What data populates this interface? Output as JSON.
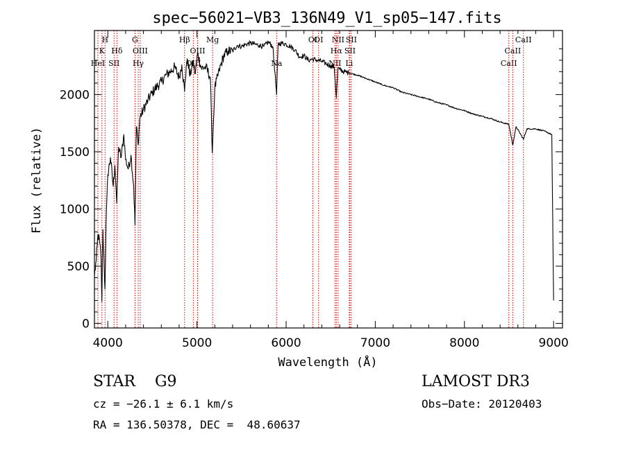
{
  "chart_data": {
    "type": "line",
    "title": "spec−56021−VB3_136N49_V1_sp05−147.fits",
    "xlabel": "Wavelength (Å)",
    "ylabel": "Flux (relative)",
    "xlim": [
      3850,
      9100
    ],
    "ylim": [
      -40,
      2560
    ],
    "xticks": [
      4000,
      5000,
      6000,
      7000,
      8000,
      9000
    ],
    "xtick_labels": [
      "4000",
      "5000",
      "6000",
      "7000",
      "8000",
      "9000"
    ],
    "yticks": [
      0,
      500,
      1000,
      1500,
      2000
    ],
    "ytick_labels": [
      "0",
      "500",
      "1000",
      "1500",
      "2000"
    ],
    "series": [
      {
        "name": "flux",
        "color": "#000000",
        "x": [
          3850,
          3870,
          3890,
          3910,
          3925,
          3933,
          3945,
          3960,
          3968,
          3980,
          4000,
          4030,
          4060,
          4080,
          4101,
          4120,
          4150,
          4180,
          4200,
          4230,
          4260,
          4290,
          4305,
          4320,
          4340,
          4360,
          4400,
          4450,
          4500,
          4550,
          4600,
          4650,
          4700,
          4750,
          4800,
          4830,
          4861,
          4880,
          4900,
          4920,
          4957,
          4980,
          5007,
          5050,
          5100,
          5150,
          5172,
          5183,
          5200,
          5250,
          5300,
          5350,
          5400,
          5450,
          5500,
          5550,
          5600,
          5650,
          5700,
          5750,
          5800,
          5850,
          5875,
          5893,
          5910,
          5950,
          6000,
          6050,
          6100,
          6150,
          6200,
          6250,
          6300,
          6350,
          6400,
          6450,
          6500,
          6540,
          6563,
          6580,
          6600,
          6650,
          6700,
          6750,
          6800,
          6900,
          7000,
          7100,
          7200,
          7300,
          7400,
          7500,
          7600,
          7700,
          7800,
          7900,
          8000,
          8100,
          8200,
          8300,
          8400,
          8498,
          8542,
          8580,
          8662,
          8700,
          8800,
          8900,
          8980,
          9000
        ],
        "y": [
          420,
          550,
          780,
          700,
          560,
          190,
          820,
          480,
          300,
          860,
          1300,
          1450,
          1200,
          1380,
          1050,
          1540,
          1450,
          1650,
          1430,
          1350,
          1470,
          1200,
          860,
          1720,
          1560,
          1800,
          1870,
          1950,
          2020,
          2070,
          2110,
          2170,
          2200,
          2240,
          2150,
          2260,
          2030,
          2250,
          2300,
          2160,
          2290,
          2180,
          2360,
          2230,
          2240,
          2150,
          1490,
          1730,
          2060,
          2210,
          2340,
          2380,
          2380,
          2430,
          2420,
          2440,
          2450,
          2440,
          2430,
          2420,
          2460,
          2420,
          2190,
          2000,
          2440,
          2450,
          2440,
          2420,
          2390,
          2330,
          2340,
          2300,
          2310,
          2300,
          2290,
          2270,
          2250,
          2240,
          1970,
          2230,
          2220,
          2200,
          2190,
          2180,
          2170,
          2140,
          2110,
          2080,
          2060,
          2020,
          2000,
          1980,
          1960,
          1930,
          1910,
          1880,
          1860,
          1830,
          1810,
          1790,
          1760,
          1740,
          1560,
          1720,
          1610,
          1700,
          1700,
          1680,
          1650,
          200
        ]
      }
    ],
    "line_markers": [
      {
        "name": "HeI",
        "x": 3889,
        "level": 3
      },
      {
        "name": "K",
        "x": 3934,
        "level": 2
      },
      {
        "name": "H",
        "x": 3969,
        "level": 1
      },
      {
        "name": "SII",
        "x": 4070,
        "level": 3
      },
      {
        "name": "Hδ",
        "x": 4102,
        "level": 2
      },
      {
        "name": "G",
        "x": 4305,
        "level": 1
      },
      {
        "name": "Hγ",
        "x": 4341,
        "level": 3
      },
      {
        "name": "OIII",
        "x": 4363,
        "level": 2
      },
      {
        "name": "Hβ",
        "x": 4861,
        "level": 1
      },
      {
        "name": "OIII",
        "x": 4959,
        "level": 3
      },
      {
        "name": "OIII",
        "x": 5007,
        "level": 2
      },
      {
        "name": "Mg",
        "x": 5175,
        "level": 1
      },
      {
        "name": "Na",
        "x": 5893,
        "level": 3
      },
      {
        "name": "OI",
        "x": 6300,
        "level": 1
      },
      {
        "name": "OI",
        "x": 6364,
        "level": 1
      },
      {
        "name": "NII",
        "x": 6548,
        "level": 3
      },
      {
        "name": "Hα",
        "x": 6563,
        "level": 2
      },
      {
        "name": "NII",
        "x": 6583,
        "level": 1
      },
      {
        "name": "Li",
        "x": 6708,
        "level": 3
      },
      {
        "name": "SII",
        "x": 6716,
        "level": 2
      },
      {
        "name": "SII",
        "x": 6731,
        "level": 1
      },
      {
        "name": "CaII",
        "x": 8498,
        "level": 3
      },
      {
        "name": "CaII",
        "x": 8542,
        "level": 2
      },
      {
        "name": "CaII",
        "x": 8662,
        "level": 1
      }
    ],
    "marker_color": "#cc0000"
  },
  "info": {
    "object_class": "STAR    G9",
    "survey": "LAMOST DR3",
    "redshift_line": "cz = −26.1 ± 6.1 km/s",
    "obs_date_line": "Obs−Date: 20120403",
    "radec_line": "RA = 136.50378, DEC =  48.60637"
  }
}
